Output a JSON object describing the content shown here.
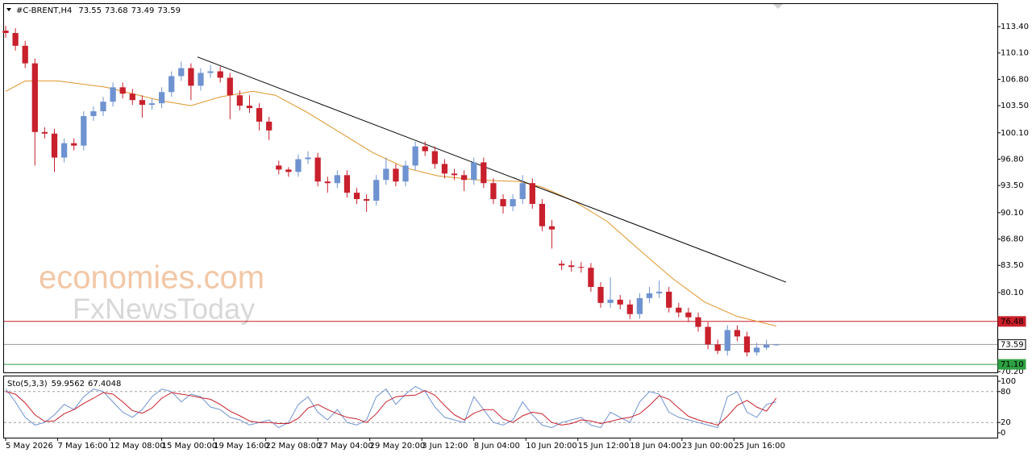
{
  "chart_data": {
    "type": "candlestick",
    "symbol": "#C-BRENT,H4",
    "header_values": [
      73.55,
      73.68,
      73.49,
      73.59
    ],
    "watermark": [
      "economies.com",
      "FxNewsToday"
    ],
    "up_color": "#6f93d0",
    "down_color": "#c8202c",
    "x": [
      0,
      3,
      6,
      9,
      12,
      15,
      18,
      21,
      24,
      27,
      30,
      33,
      36,
      39,
      42,
      45,
      48,
      51,
      54,
      57,
      60,
      63,
      66,
      69,
      72,
      75,
      78,
      81,
      84,
      87,
      90,
      93,
      96,
      99,
      102,
      105,
      108,
      111,
      114,
      117,
      120,
      123,
      126,
      129,
      132,
      135,
      138,
      141,
      144,
      147,
      150,
      153,
      156,
      159,
      162,
      165,
      168,
      171,
      174,
      177,
      180,
      183,
      186,
      189,
      192,
      195,
      198,
      201,
      204,
      207,
      210,
      213,
      216,
      219,
      222,
      225,
      228,
      231,
      234,
      237
    ],
    "open": [
      112.9,
      112.6,
      111.0,
      108.8,
      100.2,
      100.0,
      97.0,
      98.8,
      98.5,
      102.2,
      102.8,
      104.0,
      105.8,
      105.0,
      104.2,
      103.6,
      103.8,
      105.2,
      107.2,
      108.2,
      106.0,
      107.6,
      107.8,
      107.0,
      104.8,
      103.5,
      103.2,
      101.5,
      96.0,
      95.5,
      95.2,
      96.8,
      97.0,
      94.0,
      93.8,
      94.8,
      92.6,
      91.8,
      91.6,
      94.2,
      95.6,
      94.0,
      96.0,
      98.4,
      97.8,
      96.2,
      95.0,
      94.8,
      94.2,
      96.4,
      93.8,
      91.8,
      90.9,
      91.8,
      93.8,
      91.2,
      88.4,
      83.7,
      83.5,
      83.3,
      83.2,
      80.8,
      78.8,
      79.2,
      78.6,
      77.4,
      79.4,
      80.0,
      80.2,
      78.2,
      77.6,
      77.0,
      75.8,
      73.6,
      72.8,
      75.4,
      74.6,
      72.6,
      73.2,
      73.55
    ],
    "high": [
      113.5,
      113.2,
      111.6,
      109.4,
      100.8,
      100.6,
      99.4,
      99.4,
      102.8,
      103.4,
      104.6,
      106.4,
      106.4,
      105.6,
      104.8,
      104.4,
      105.8,
      107.8,
      109.0,
      108.8,
      108.2,
      108.6,
      108.4,
      107.6,
      105.4,
      104.8,
      103.8,
      102.1,
      96.6,
      95.8,
      97.4,
      97.8,
      97.6,
      94.6,
      95.4,
      95.4,
      93.2,
      92.4,
      94.8,
      97.0,
      96.2,
      96.6,
      99.0,
      99.0,
      98.4,
      96.8,
      95.6,
      95.4,
      97.0,
      97.0,
      94.4,
      92.4,
      92.4,
      94.8,
      94.4,
      91.8,
      89.2,
      84.1,
      84.1,
      83.9,
      83.8,
      81.4,
      82.0,
      79.8,
      79.2,
      80.0,
      80.8,
      81.6,
      80.8,
      78.8,
      78.2,
      77.6,
      76.4,
      74.2,
      76.0,
      76.0,
      75.2,
      73.8,
      74.2,
      73.68
    ],
    "low": [
      112.0,
      110.4,
      108.2,
      96.0,
      99.4,
      95.2,
      96.4,
      97.9,
      97.9,
      101.6,
      102.2,
      103.4,
      104.4,
      103.6,
      102.0,
      103.0,
      103.2,
      104.6,
      106.6,
      104.2,
      105.4,
      107.0,
      106.4,
      101.8,
      102.9,
      102.6,
      100.4,
      99.2,
      94.9,
      94.6,
      94.6,
      96.2,
      93.4,
      92.6,
      93.2,
      92.0,
      91.2,
      90.2,
      91.0,
      93.6,
      93.4,
      93.4,
      95.4,
      97.2,
      95.6,
      94.4,
      94.2,
      92.8,
      93.6,
      93.2,
      91.2,
      90.0,
      90.3,
      91.2,
      90.6,
      87.8,
      85.6,
      82.9,
      82.7,
      82.6,
      80.2,
      78.2,
      78.2,
      78.0,
      76.8,
      76.8,
      78.8,
      79.4,
      77.6,
      77.0,
      76.4,
      75.2,
      73.0,
      72.4,
      72.2,
      74.0,
      72.1,
      72.2,
      72.9,
      73.49
    ],
    "close": [
      112.6,
      111.0,
      108.8,
      100.2,
      100.0,
      97.0,
      98.8,
      98.5,
      102.2,
      102.8,
      104.0,
      105.8,
      105.0,
      104.2,
      103.6,
      103.8,
      105.2,
      107.2,
      108.2,
      106.0,
      107.6,
      107.8,
      107.0,
      104.8,
      103.5,
      103.2,
      101.5,
      100.4,
      95.5,
      95.2,
      96.8,
      97.0,
      94.0,
      93.8,
      94.8,
      92.6,
      91.8,
      91.6,
      94.2,
      95.6,
      94.0,
      96.0,
      98.4,
      97.8,
      96.2,
      95.0,
      94.8,
      94.2,
      96.4,
      93.8,
      91.8,
      90.9,
      91.8,
      93.8,
      91.2,
      88.4,
      88.0,
      83.5,
      83.3,
      83.2,
      80.8,
      78.8,
      79.2,
      78.6,
      77.4,
      79.4,
      80.0,
      80.2,
      78.2,
      77.6,
      77.0,
      75.8,
      73.6,
      72.8,
      75.4,
      74.6,
      72.6,
      73.2,
      73.55,
      73.59
    ],
    "xlim": [
      -0.5,
      305
    ],
    "ylim": [
      70.1,
      116.23
    ],
    "yticks": [
      {
        "value": 113.4,
        "label": "113.40"
      },
      {
        "value": 110.1,
        "label": "110.10"
      },
      {
        "value": 106.8,
        "label": "106.80"
      },
      {
        "value": 103.5,
        "label": "103.50"
      },
      {
        "value": 100.1,
        "label": "100.10"
      },
      {
        "value": 96.8,
        "label": "96.80"
      },
      {
        "value": 93.5,
        "label": "93.50"
      },
      {
        "value": 90.1,
        "label": "90.10"
      },
      {
        "value": 86.8,
        "label": "86.80"
      },
      {
        "value": 83.5,
        "label": "83.50"
      },
      {
        "value": 80.1,
        "label": "80.10"
      },
      {
        "value": 70.2,
        "label": "70.20"
      }
    ],
    "xticks": [
      {
        "value": 0,
        "label": "5 May 2026"
      },
      {
        "value": 16,
        "label": "7 May 16:00"
      },
      {
        "value": 32,
        "label": "12 May 08:00"
      },
      {
        "value": 48,
        "label": "15 May 00:00"
      },
      {
        "value": 64,
        "label": "19 May 16:00"
      },
      {
        "value": 80,
        "label": "22 May 08:00"
      },
      {
        "value": 96,
        "label": "27 May 04:00"
      },
      {
        "value": 112,
        "label": "29 May 20:00"
      },
      {
        "value": 128,
        "label": "3 Jun 12:00"
      },
      {
        "value": 144,
        "label": "8 Jun 04:00"
      },
      {
        "value": 160,
        "label": "10 Jun 20:00"
      },
      {
        "value": 176,
        "label": "15 Jun 12:00"
      },
      {
        "value": 192,
        "label": "18 Jun 04:00"
      },
      {
        "value": 208,
        "label": "23 Jun 00:00"
      },
      {
        "value": 224,
        "label": "25 Jun 16:00"
      }
    ],
    "ma": {
      "color": "#e0952a",
      "x": [
        0,
        6,
        16,
        31,
        48,
        57,
        66,
        76,
        83,
        93,
        103,
        113,
        123,
        133,
        145,
        158,
        165,
        175,
        185,
        195,
        205,
        215,
        225,
        237
      ],
      "values": [
        105.3,
        106.6,
        106.6,
        105.8,
        104.1,
        103.5,
        104.6,
        105.3,
        104.8,
        102.6,
        100.1,
        97.6,
        95.7,
        94.7,
        94.2,
        94.0,
        93.3,
        91.5,
        89.0,
        85.4,
        81.9,
        78.9,
        77.1,
        75.9
      ]
    },
    "trendline": {
      "color": "#000000",
      "x": [
        59,
        240
      ],
      "values": [
        109.6,
        81.4
      ]
    },
    "levels": [
      {
        "value": 76.48,
        "color": "#c81e28",
        "filled": true
      },
      {
        "value": 73.59,
        "color": "#9a9a9a",
        "filled": false
      },
      {
        "value": 71.1,
        "label": "71.10",
        "color": "#2ea043",
        "filled": true
      }
    ],
    "stochastic": {
      "label": "Sto(5,3,3)",
      "header_values": [
        59.9562,
        67.4048
      ],
      "ylim": [
        -9.4,
        109.4
      ],
      "yticks": [
        0,
        20,
        80,
        100
      ],
      "levels": [
        20,
        80
      ],
      "main": {
        "color": "#6f93d0",
        "values": [
          85,
          60,
          30,
          15,
          20,
          35,
          55,
          45,
          70,
          85,
          80,
          60,
          40,
          30,
          45,
          70,
          85,
          80,
          60,
          75,
          70,
          50,
          45,
          30,
          25,
          15,
          20,
          25,
          10,
          20,
          55,
          70,
          40,
          25,
          45,
          20,
          15,
          25,
          70,
          85,
          55,
          75,
          90,
          80,
          50,
          30,
          25,
          20,
          70,
          45,
          20,
          15,
          25,
          60,
          35,
          15,
          10,
          20,
          25,
          30,
          15,
          10,
          40,
          30,
          20,
          60,
          80,
          75,
          40,
          30,
          25,
          20,
          15,
          10,
          70,
          80,
          40,
          30,
          55,
          59.9562
        ]
      },
      "signal": {
        "color": "#c8202c",
        "values": [
          80,
          75,
          58,
          35,
          22,
          23,
          37,
          45,
          57,
          67,
          78,
          75,
          60,
          43,
          38,
          48,
          67,
          78,
          75,
          72,
          68,
          65,
          55,
          42,
          33,
          23,
          20,
          20,
          18,
          18,
          28,
          48,
          55,
          45,
          37,
          30,
          27,
          20,
          37,
          60,
          70,
          72,
          73,
          82,
          73,
          53,
          35,
          25,
          38,
          45,
          45,
          27,
          20,
          33,
          40,
          37,
          20,
          15,
          18,
          25,
          23,
          18,
          22,
          27,
          30,
          37,
          53,
          72,
          65,
          48,
          32,
          25,
          20,
          15,
          32,
          53,
          63,
          50,
          42,
          67.4048
        ]
      }
    }
  }
}
